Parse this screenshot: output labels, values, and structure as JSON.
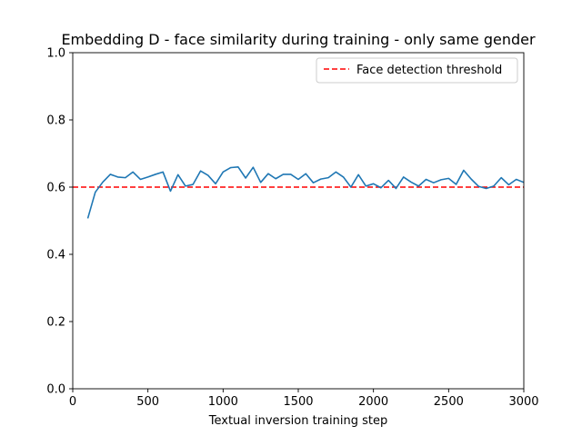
{
  "chart_data": {
    "type": "line",
    "title": "Embedding D - face similarity during training - only same gender",
    "xlabel": "Textual inversion training step",
    "ylabel": "",
    "xlim": [
      0,
      3000
    ],
    "ylim": [
      0.0,
      1.0
    ],
    "xticks": [
      0,
      500,
      1000,
      1500,
      2000,
      2500,
      3000
    ],
    "yticks": [
      0.0,
      0.2,
      0.4,
      0.6,
      0.8,
      1.0
    ],
    "xtick_labels": [
      "0",
      "500",
      "1000",
      "1500",
      "2000",
      "2500",
      "3000"
    ],
    "ytick_labels": [
      "0.0",
      "0.2",
      "0.4",
      "0.6",
      "0.8",
      "1.0"
    ],
    "grid": false,
    "legend_position": "top-right",
    "series": [
      {
        "name": "",
        "color": "#1f77b4",
        "x": [
          100,
          150,
          200,
          250,
          300,
          350,
          400,
          450,
          500,
          550,
          600,
          650,
          700,
          750,
          800,
          850,
          900,
          950,
          1000,
          1050,
          1100,
          1150,
          1200,
          1250,
          1300,
          1350,
          1400,
          1450,
          1500,
          1550,
          1600,
          1650,
          1700,
          1750,
          1800,
          1850,
          1900,
          1950,
          2000,
          2050,
          2100,
          2150,
          2200,
          2250,
          2300,
          2350,
          2400,
          2450,
          2500,
          2550,
          2600,
          2650,
          2700,
          2750,
          2800,
          2850,
          2900,
          2950,
          3000
        ],
        "y": [
          0.507,
          0.585,
          0.615,
          0.638,
          0.63,
          0.628,
          0.645,
          0.623,
          0.63,
          0.638,
          0.645,
          0.588,
          0.637,
          0.603,
          0.608,
          0.648,
          0.635,
          0.61,
          0.645,
          0.658,
          0.66,
          0.627,
          0.659,
          0.614,
          0.64,
          0.625,
          0.638,
          0.638,
          0.623,
          0.64,
          0.613,
          0.624,
          0.628,
          0.645,
          0.63,
          0.6,
          0.637,
          0.603,
          0.61,
          0.598,
          0.62,
          0.596,
          0.63,
          0.615,
          0.603,
          0.623,
          0.613,
          0.622,
          0.626,
          0.608,
          0.65,
          0.624,
          0.602,
          0.596,
          0.603,
          0.628,
          0.607,
          0.623,
          0.614
        ]
      }
    ],
    "threshold": {
      "name": "Face detection threshold",
      "value": 0.6,
      "color": "#ff0000",
      "style": "dashed"
    }
  }
}
